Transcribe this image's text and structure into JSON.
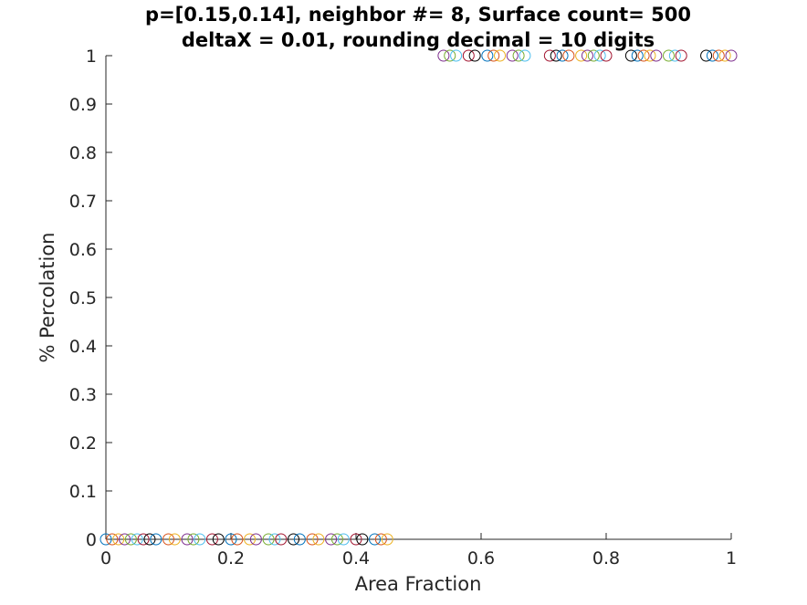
{
  "chart_data": {
    "type": "scatter",
    "title": [
      "p=[0.15,0.14], neighbor #= 8, Surface count= 500",
      "deltaX = 0.01, rounding decimal = 10 digits"
    ],
    "xlabel": "Area Fraction",
    "ylabel": "% Percolation",
    "xlim": [
      0,
      1
    ],
    "ylim": [
      0,
      1
    ],
    "xticks": [
      0,
      0.2,
      0.4,
      0.6,
      0.8,
      1
    ],
    "xtick_labels": [
      "0",
      "0.2",
      "0.4",
      "0.6",
      "0.8",
      "1"
    ],
    "yticks": [
      0,
      0.1,
      0.2,
      0.3,
      0.4,
      0.5,
      0.6,
      0.7,
      0.8,
      0.9,
      1
    ],
    "ytick_labels": [
      "0",
      "0.1",
      "0.2",
      "0.3",
      "0.4",
      "0.5",
      "0.6",
      "0.7",
      "0.8",
      "0.9",
      "1"
    ],
    "grid": false,
    "marker": "circle-open",
    "colors": [
      "#0072BD",
      "#D95319",
      "#EDB120",
      "#7E2F8E",
      "#77AC30",
      "#4DBEEE",
      "#A2142F",
      "#000000"
    ],
    "points": [
      {
        "x": 0.0,
        "y": 0
      },
      {
        "x": 0.01,
        "y": 0
      },
      {
        "x": 0.02,
        "y": 0
      },
      {
        "x": 0.03,
        "y": 0
      },
      {
        "x": 0.04,
        "y": 0
      },
      {
        "x": 0.05,
        "y": 0
      },
      {
        "x": 0.06,
        "y": 0
      },
      {
        "x": 0.07,
        "y": 0
      },
      {
        "x": 0.08,
        "y": 0
      },
      {
        "x": 0.1,
        "y": 0
      },
      {
        "x": 0.11,
        "y": 0
      },
      {
        "x": 0.13,
        "y": 0
      },
      {
        "x": 0.14,
        "y": 0
      },
      {
        "x": 0.15,
        "y": 0
      },
      {
        "x": 0.17,
        "y": 0
      },
      {
        "x": 0.18,
        "y": 0
      },
      {
        "x": 0.2,
        "y": 0
      },
      {
        "x": 0.21,
        "y": 0
      },
      {
        "x": 0.23,
        "y": 0
      },
      {
        "x": 0.24,
        "y": 0
      },
      {
        "x": 0.26,
        "y": 0
      },
      {
        "x": 0.27,
        "y": 0
      },
      {
        "x": 0.28,
        "y": 0
      },
      {
        "x": 0.3,
        "y": 0
      },
      {
        "x": 0.31,
        "y": 0
      },
      {
        "x": 0.33,
        "y": 0
      },
      {
        "x": 0.34,
        "y": 0
      },
      {
        "x": 0.36,
        "y": 0
      },
      {
        "x": 0.37,
        "y": 0
      },
      {
        "x": 0.38,
        "y": 0
      },
      {
        "x": 0.4,
        "y": 0
      },
      {
        "x": 0.41,
        "y": 0
      },
      {
        "x": 0.43,
        "y": 0
      },
      {
        "x": 0.44,
        "y": 0
      },
      {
        "x": 0.45,
        "y": 0
      },
      {
        "x": 0.54,
        "y": 1
      },
      {
        "x": 0.55,
        "y": 1
      },
      {
        "x": 0.56,
        "y": 1
      },
      {
        "x": 0.58,
        "y": 1
      },
      {
        "x": 0.59,
        "y": 1
      },
      {
        "x": 0.61,
        "y": 1
      },
      {
        "x": 0.62,
        "y": 1
      },
      {
        "x": 0.63,
        "y": 1
      },
      {
        "x": 0.65,
        "y": 1
      },
      {
        "x": 0.66,
        "y": 1
      },
      {
        "x": 0.67,
        "y": 1
      },
      {
        "x": 0.71,
        "y": 1
      },
      {
        "x": 0.72,
        "y": 1
      },
      {
        "x": 0.73,
        "y": 1
      },
      {
        "x": 0.74,
        "y": 1
      },
      {
        "x": 0.76,
        "y": 1
      },
      {
        "x": 0.77,
        "y": 1
      },
      {
        "x": 0.78,
        "y": 1
      },
      {
        "x": 0.79,
        "y": 1
      },
      {
        "x": 0.8,
        "y": 1
      },
      {
        "x": 0.84,
        "y": 1
      },
      {
        "x": 0.85,
        "y": 1
      },
      {
        "x": 0.86,
        "y": 1
      },
      {
        "x": 0.87,
        "y": 1
      },
      {
        "x": 0.88,
        "y": 1
      },
      {
        "x": 0.9,
        "y": 1
      },
      {
        "x": 0.91,
        "y": 1
      },
      {
        "x": 0.92,
        "y": 1
      },
      {
        "x": 0.96,
        "y": 1
      },
      {
        "x": 0.97,
        "y": 1
      },
      {
        "x": 0.98,
        "y": 1
      },
      {
        "x": 0.99,
        "y": 1
      },
      {
        "x": 1.0,
        "y": 1
      }
    ]
  }
}
